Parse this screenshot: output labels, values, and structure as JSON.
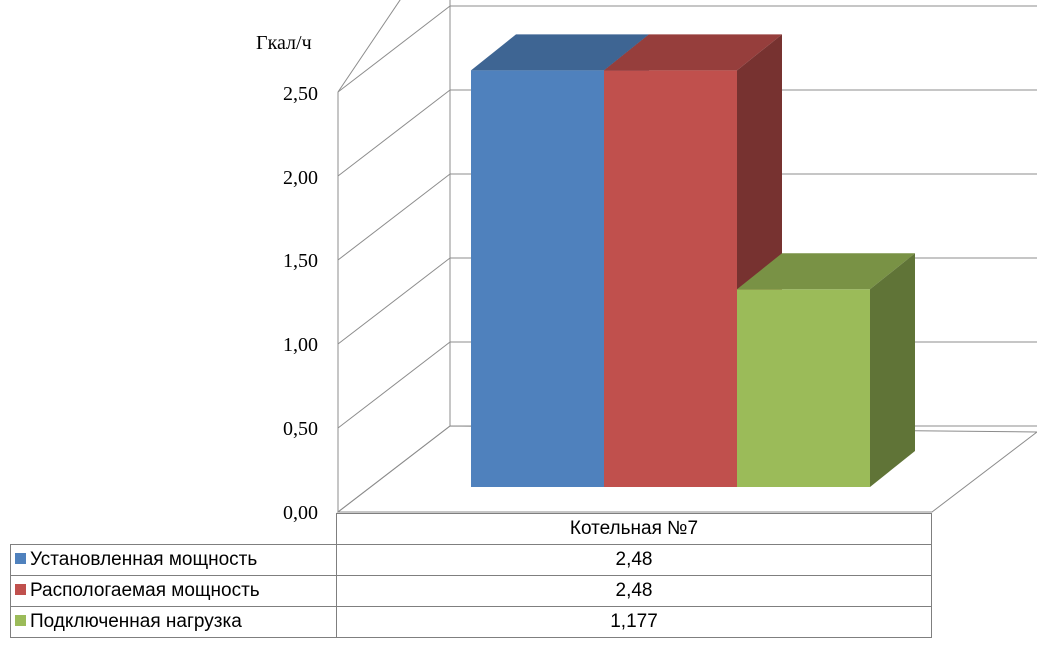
{
  "chart_data": {
    "type": "bar",
    "unit_label": "Гкал/ч",
    "ylim": [
      0,
      2.5
    ],
    "y_ticks": [
      "0,00",
      "0,50",
      "1,00",
      "1,50",
      "2,00",
      "2,50"
    ],
    "categories": [
      "Котельная №7"
    ],
    "grid": true,
    "legend": "data-table-bottom",
    "series": [
      {
        "name": "Установленная мощность",
        "values": [
          2.48
        ],
        "value_label": "2,48",
        "color": "#4F81BD"
      },
      {
        "name": "Распологаемая мощность",
        "values": [
          2.48
        ],
        "value_label": "2,48",
        "color": "#C0504D"
      },
      {
        "name": "Подключенная нагрузка",
        "values": [
          1.177
        ],
        "value_label": "1,177",
        "color": "#9BBB59"
      }
    ]
  }
}
